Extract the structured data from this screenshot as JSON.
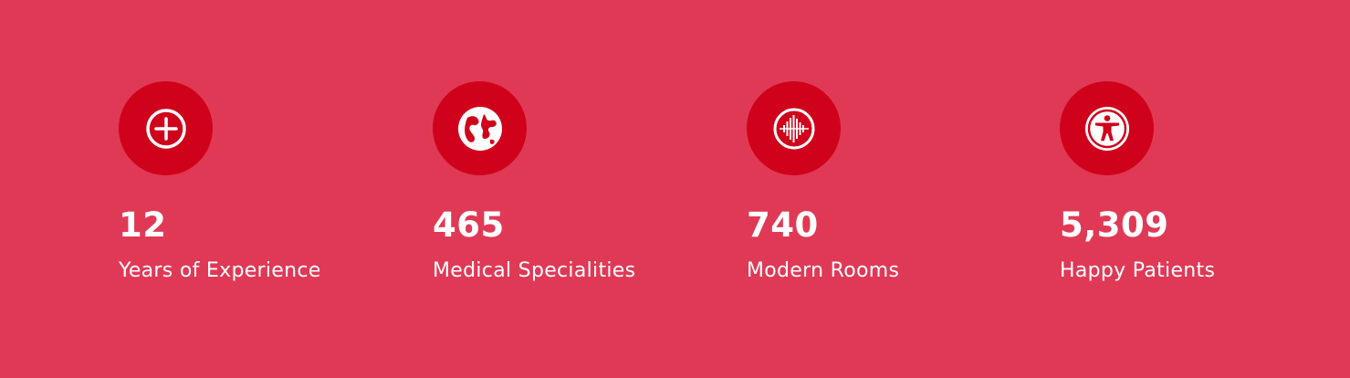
{
  "colors": {
    "background": "#e03956",
    "icon_circle": "#d0021b",
    "text": "#ffffff"
  },
  "stats": [
    {
      "icon": "plus-circle-icon",
      "value": "12",
      "label": "Years of Experience"
    },
    {
      "icon": "globe-icon",
      "value": "465",
      "label": "Medical Specialities"
    },
    {
      "icon": "pulse-wave-icon",
      "value": "740",
      "label": "Modern Rooms"
    },
    {
      "icon": "accessibility-person-icon",
      "value": "5,309",
      "label": "Happy Patients"
    }
  ]
}
